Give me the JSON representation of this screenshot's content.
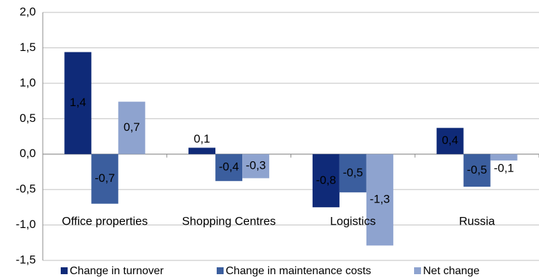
{
  "chart_data": {
    "type": "bar",
    "categories": [
      "Office properties",
      "Shopping Centres",
      "Logistics",
      "Russia"
    ],
    "series": [
      {
        "name": "Change in turnover",
        "color": "#0f2a78",
        "values": [
          1.44,
          0.09,
          -0.75,
          0.37
        ],
        "value_labels": [
          "1,4",
          "0,1",
          "-0,8",
          "0,4"
        ]
      },
      {
        "name": "Change in maintenance costs",
        "color": "#3b5e9e",
        "values": [
          -0.7,
          -0.38,
          -0.54,
          -0.46
        ],
        "value_labels": [
          "-0,7",
          "-0,4",
          "-0,5",
          "-0,5"
        ]
      },
      {
        "name": "Net change",
        "color": "#8ea3cf",
        "values": [
          0.74,
          -0.34,
          -1.29,
          -0.09
        ],
        "value_labels": [
          "0,7",
          "-0,3",
          "-1,3",
          "-0,1"
        ]
      }
    ],
    "ylim": [
      -1.5,
      2.0
    ],
    "yticks": [
      {
        "value": -1.5,
        "label": "-1,5"
      },
      {
        "value": -1.0,
        "label": "-1,0"
      },
      {
        "value": -0.5,
        "label": "-0,5"
      },
      {
        "value": 0,
        "label": "0,0"
      },
      {
        "value": 0.5,
        "label": "0,5"
      },
      {
        "value": 1.0,
        "label": "1,0"
      },
      {
        "value": 1.5,
        "label": "1,5"
      },
      {
        "value": 2.0,
        "label": "2,0"
      }
    ],
    "grid": true,
    "legend": "bottom"
  }
}
